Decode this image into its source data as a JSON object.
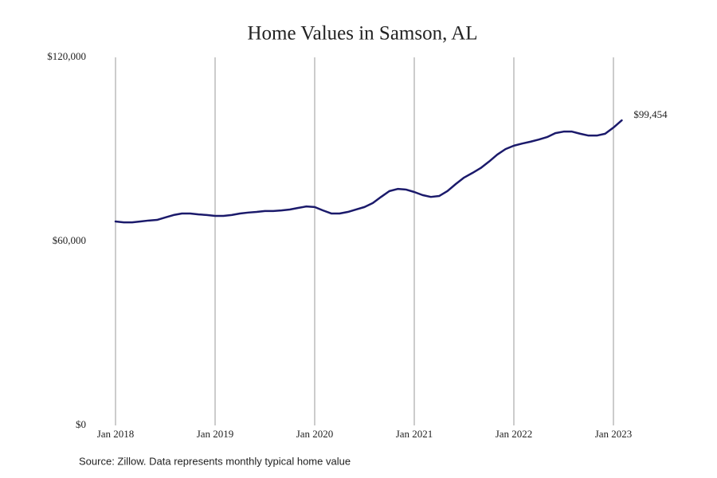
{
  "chart_data": {
    "type": "line",
    "title": "Home Values in Samson, AL",
    "source": "Source: Zillow. Data represents monthly typical home value",
    "categories": [
      "Jan 2018",
      null,
      null,
      null,
      null,
      null,
      null,
      null,
      null,
      null,
      null,
      null,
      "Jan 2019",
      null,
      null,
      null,
      null,
      null,
      null,
      null,
      null,
      null,
      null,
      null,
      "Jan 2020",
      null,
      null,
      null,
      null,
      null,
      null,
      null,
      null,
      null,
      null,
      null,
      "Jan 2021",
      null,
      null,
      null,
      null,
      null,
      null,
      null,
      null,
      null,
      null,
      null,
      "Jan 2022",
      null,
      null,
      null,
      null,
      null,
      null,
      null,
      null,
      null,
      null,
      null,
      "Jan 2023",
      null
    ],
    "series": [
      {
        "name": "Home value",
        "color": "#1b1a6b",
        "values": [
          66500,
          66200,
          66200,
          66500,
          66800,
          67000,
          67800,
          68600,
          69100,
          69100,
          68800,
          68600,
          68300,
          68300,
          68600,
          69100,
          69400,
          69600,
          69900,
          69900,
          70100,
          70400,
          70900,
          71400,
          71200,
          70100,
          69100,
          69100,
          69600,
          70400,
          71200,
          72500,
          74500,
          76400,
          77100,
          76900,
          76100,
          75100,
          74500,
          74800,
          76400,
          78700,
          80800,
          82300,
          83900,
          86000,
          88300,
          90100,
          91200,
          91900,
          92500,
          93200,
          94000,
          95300,
          95800,
          95800,
          95100,
          94500,
          94500,
          95100,
          97100,
          99454
        ],
        "value_labels": [
          null,
          null,
          null,
          null,
          null,
          null,
          null,
          null,
          null,
          null,
          null,
          null,
          null,
          null,
          null,
          null,
          null,
          null,
          null,
          null,
          null,
          null,
          null,
          null,
          null,
          null,
          null,
          null,
          null,
          null,
          null,
          null,
          null,
          null,
          null,
          null,
          null,
          null,
          null,
          null,
          null,
          null,
          null,
          null,
          null,
          null,
          null,
          null,
          null,
          null,
          null,
          null,
          null,
          null,
          null,
          null,
          null,
          null,
          null,
          null,
          null,
          "$99,454"
        ]
      }
    ],
    "ylim": [
      0,
      120000
    ],
    "yticks": [
      {
        "value": 0,
        "label": "$0"
      },
      {
        "value": 60000,
        "label": "$60,000"
      },
      {
        "value": 120000,
        "label": "$120,000"
      }
    ],
    "grid": "x"
  }
}
